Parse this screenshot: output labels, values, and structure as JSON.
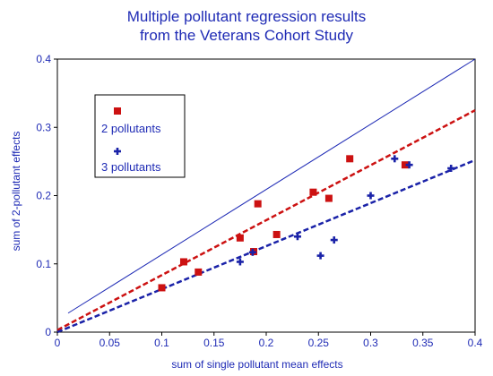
{
  "chart_data": {
    "type": "scatter",
    "title_lines": [
      "Multiple pollutant regression results",
      "from the Veterans Cohort Study"
    ],
    "xlabel": "sum of single pollutant mean effects",
    "ylabel": "sum of 2-pollutant effects",
    "xlim": [
      0,
      0.4
    ],
    "ylim": [
      0,
      0.4
    ],
    "x_ticks": [
      0,
      0.05,
      0.1,
      0.15,
      0.2,
      0.25,
      0.3,
      0.35,
      0.4
    ],
    "x_tick_labels": [
      "0",
      "0.05",
      "0.1",
      "0.15",
      "0.2",
      "0.25",
      "0.3",
      "0.35",
      "0.4"
    ],
    "y_ticks": [
      0,
      0.1,
      0.2,
      0.3,
      0.4
    ],
    "y_tick_labels": [
      "0",
      "0.1",
      "0.2",
      "0.3",
      "0.4"
    ],
    "grid": false,
    "legend_position": "top-left",
    "series": [
      {
        "name": "2 pollutants",
        "marker": "square",
        "color": "#cc1111",
        "points": [
          {
            "x": 0.1,
            "y": 0.065
          },
          {
            "x": 0.121,
            "y": 0.103
          },
          {
            "x": 0.135,
            "y": 0.088
          },
          {
            "x": 0.175,
            "y": 0.138
          },
          {
            "x": 0.188,
            "y": 0.118
          },
          {
            "x": 0.192,
            "y": 0.188
          },
          {
            "x": 0.21,
            "y": 0.143
          },
          {
            "x": 0.245,
            "y": 0.205
          },
          {
            "x": 0.26,
            "y": 0.196
          },
          {
            "x": 0.28,
            "y": 0.254
          },
          {
            "x": 0.333,
            "y": 0.245
          }
        ],
        "fit_line": {
          "x": [
            0,
            0.4
          ],
          "y": [
            0.003,
            0.325
          ],
          "style": "dashed"
        }
      },
      {
        "name": "3 pollutants",
        "marker": "plus",
        "color": "#1a22a8",
        "points": [
          {
            "x": 0.175,
            "y": 0.103
          },
          {
            "x": 0.187,
            "y": 0.117
          },
          {
            "x": 0.23,
            "y": 0.14
          },
          {
            "x": 0.252,
            "y": 0.112
          },
          {
            "x": 0.265,
            "y": 0.135
          },
          {
            "x": 0.3,
            "y": 0.2
          },
          {
            "x": 0.323,
            "y": 0.254
          },
          {
            "x": 0.337,
            "y": 0.245
          },
          {
            "x": 0.377,
            "y": 0.24
          }
        ],
        "fit_line": {
          "x": [
            0,
            0.4
          ],
          "y": [
            0.0,
            0.252
          ],
          "style": "dashed"
        }
      }
    ],
    "reference_line": {
      "x": [
        0.0,
        0.4
      ],
      "y": [
        0.02,
        0.4
      ],
      "color": "#1f2bb5",
      "style": "solid"
    }
  }
}
